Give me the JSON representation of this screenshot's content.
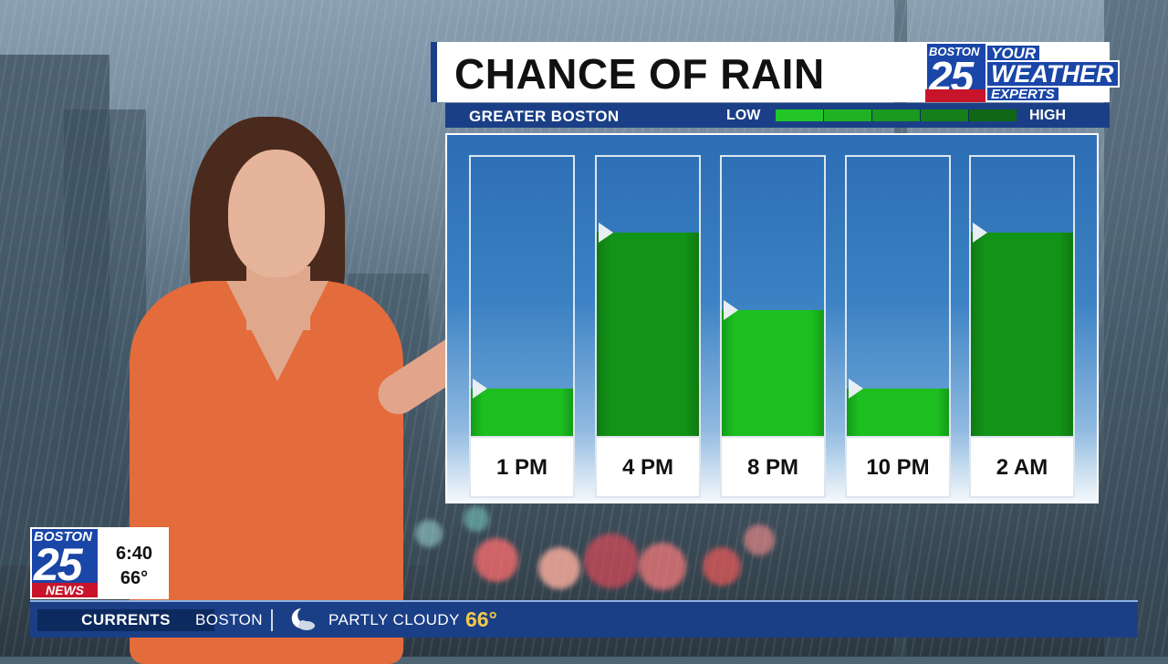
{
  "header": {
    "title": "CHANCE OF RAIN"
  },
  "station_logo": {
    "city": "BOSTON",
    "channel": "25",
    "line1": "YOUR",
    "line2": "WEATHER",
    "line3": "EXPERTS"
  },
  "subbar": {
    "location": "GREATER BOSTON",
    "low_label": "LOW",
    "high_label": "HIGH",
    "scale_colors": [
      "#22c626",
      "#1fb323",
      "#1a9a1e",
      "#157f19",
      "#106814"
    ]
  },
  "chart_data": {
    "type": "bar",
    "categories": [
      "1 PM",
      "4 PM",
      "8 PM",
      "10 PM",
      "2 AM"
    ],
    "values": [
      17,
      73,
      45,
      17,
      73
    ],
    "ylim": [
      0,
      100
    ],
    "title": "CHANCE OF RAIN",
    "grid": false,
    "colors": {
      "fill": "#1cbf1f",
      "fill_high": "#129418",
      "tube": "#3a80c2"
    }
  },
  "bug": {
    "city": "BOSTON",
    "channel": "25",
    "news": "NEWS",
    "time": "6:40",
    "temp": "66°"
  },
  "ticker": {
    "label": "CURRENTS",
    "city": "BOSTON",
    "icon": "moon-cloud-icon",
    "condition": "PARTLY CLOUDY",
    "temp": "66°"
  }
}
